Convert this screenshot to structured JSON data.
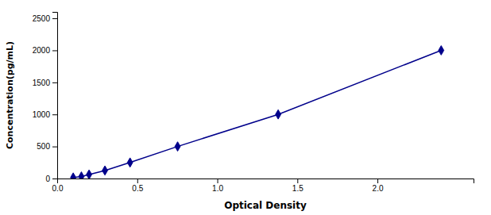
{
  "chart_data": {
    "type": "line",
    "x": [
      0.1,
      0.151,
      0.199,
      0.298,
      0.455,
      0.752,
      1.38,
      2.398
    ],
    "values": [
      15.6,
      31.25,
      62.5,
      125,
      250,
      500,
      1000,
      2000
    ],
    "color": "#00008B",
    "marker": "diamond",
    "line_style": "solid",
    "xlabel": "Optical Density",
    "ylabel": "Concentration(pg/mL)",
    "xlim": [
      0.0,
      2.6
    ],
    "ylim": [
      0,
      2600
    ],
    "xticks": [
      {
        "value": 0,
        "label": "0.0"
      },
      0.5,
      {
        "value": 1,
        "label": "1.0"
      },
      1.5,
      {
        "value": 2,
        "label": "2.0"
      }
    ],
    "yticks": [
      0,
      500,
      1000,
      1500,
      2000,
      2500
    ],
    "grid": false
  }
}
